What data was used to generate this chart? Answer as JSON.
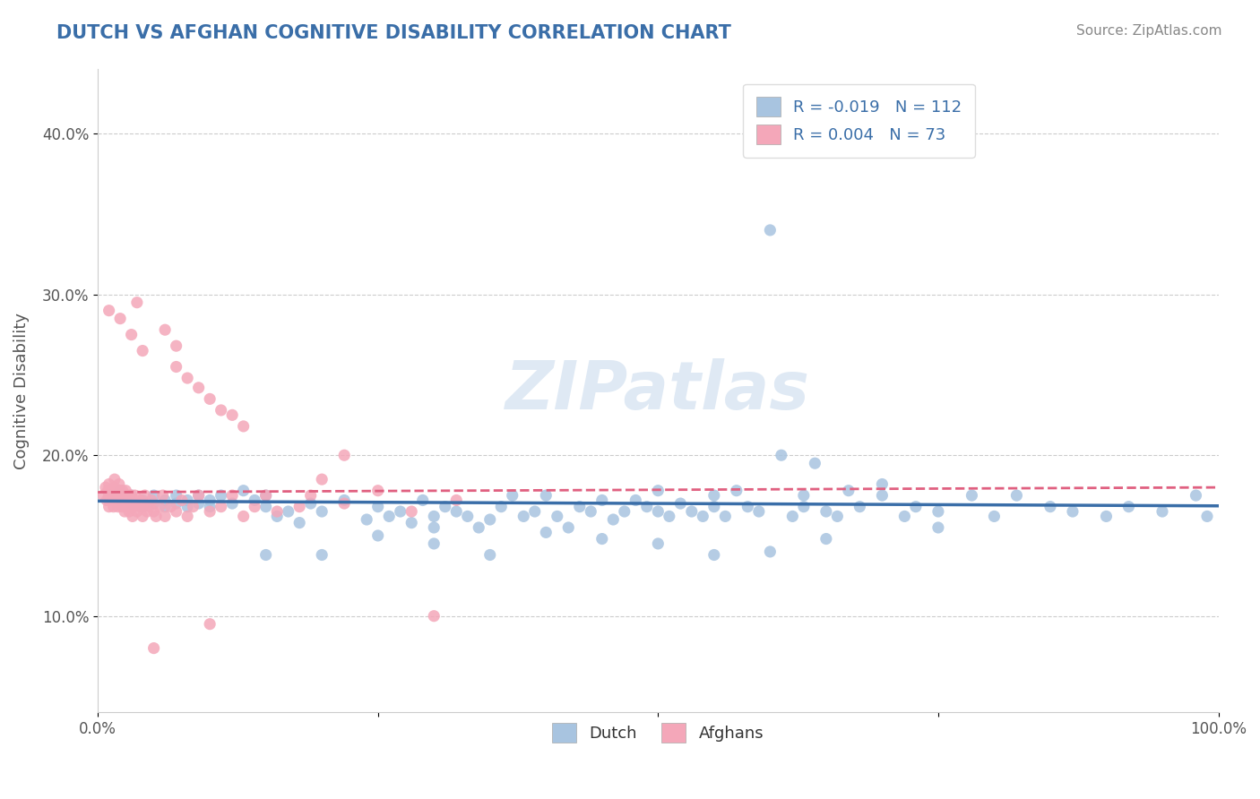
{
  "title": "DUTCH VS AFGHAN COGNITIVE DISABILITY CORRELATION CHART",
  "source": "Source: ZipAtlas.com",
  "ylabel": "Cognitive Disability",
  "xlim": [
    0.0,
    1.0
  ],
  "ylim": [
    0.04,
    0.44
  ],
  "xticks": [
    0.0,
    0.25,
    0.5,
    0.75,
    1.0
  ],
  "xticklabels": [
    "0.0%",
    "",
    "",
    "",
    "100.0%"
  ],
  "yticks": [
    0.1,
    0.2,
    0.3,
    0.4
  ],
  "yticklabels": [
    "10.0%",
    "20.0%",
    "30.0%",
    "40.0%"
  ],
  "dutch_color": "#a8c4e0",
  "afghan_color": "#f4a7b9",
  "dutch_line_color": "#3a6ea8",
  "afghan_line_color": "#e06080",
  "R_dutch": -0.019,
  "N_dutch": 112,
  "R_afghan": 0.004,
  "N_afghan": 73,
  "legend_label_dutch": "Dutch",
  "legend_label_afghan": "Afghans",
  "watermark": "ZIPatlas",
  "title_color": "#3a6ea8",
  "source_color": "#888888",
  "grid_color": "#cccccc",
  "dutch_points_x": [
    0.01,
    0.02,
    0.02,
    0.03,
    0.03,
    0.04,
    0.04,
    0.05,
    0.05,
    0.06,
    0.06,
    0.07,
    0.07,
    0.08,
    0.08,
    0.09,
    0.09,
    0.1,
    0.1,
    0.11,
    0.12,
    0.13,
    0.14,
    0.15,
    0.15,
    0.16,
    0.17,
    0.18,
    0.19,
    0.2,
    0.22,
    0.24,
    0.25,
    0.26,
    0.27,
    0.28,
    0.29,
    0.3,
    0.3,
    0.31,
    0.32,
    0.33,
    0.34,
    0.35,
    0.36,
    0.37,
    0.38,
    0.39,
    0.4,
    0.41,
    0.42,
    0.43,
    0.44,
    0.45,
    0.46,
    0.47,
    0.48,
    0.49,
    0.5,
    0.5,
    0.51,
    0.52,
    0.53,
    0.54,
    0.55,
    0.55,
    0.56,
    0.57,
    0.58,
    0.59,
    0.6,
    0.61,
    0.62,
    0.63,
    0.63,
    0.64,
    0.65,
    0.66,
    0.67,
    0.68,
    0.7,
    0.72,
    0.73,
    0.75,
    0.78,
    0.8,
    0.82,
    0.85,
    0.87,
    0.9,
    0.92,
    0.95,
    0.98,
    0.99,
    0.6,
    0.65,
    0.7,
    0.75,
    0.55,
    0.5,
    0.45,
    0.4,
    0.35,
    0.3,
    0.25,
    0.2,
    0.15
  ],
  "dutch_points_y": [
    0.175,
    0.172,
    0.178,
    0.17,
    0.175,
    0.168,
    0.172,
    0.17,
    0.175,
    0.168,
    0.172,
    0.175,
    0.17,
    0.172,
    0.168,
    0.17,
    0.175,
    0.168,
    0.172,
    0.175,
    0.17,
    0.178,
    0.172,
    0.168,
    0.175,
    0.162,
    0.165,
    0.158,
    0.17,
    0.165,
    0.172,
    0.16,
    0.168,
    0.162,
    0.165,
    0.158,
    0.172,
    0.162,
    0.155,
    0.168,
    0.165,
    0.162,
    0.155,
    0.16,
    0.168,
    0.175,
    0.162,
    0.165,
    0.175,
    0.162,
    0.155,
    0.168,
    0.165,
    0.172,
    0.16,
    0.165,
    0.172,
    0.168,
    0.178,
    0.165,
    0.162,
    0.17,
    0.165,
    0.162,
    0.175,
    0.168,
    0.162,
    0.178,
    0.168,
    0.165,
    0.34,
    0.2,
    0.162,
    0.175,
    0.168,
    0.195,
    0.165,
    0.162,
    0.178,
    0.168,
    0.175,
    0.162,
    0.168,
    0.165,
    0.175,
    0.162,
    0.175,
    0.168,
    0.165,
    0.162,
    0.168,
    0.165,
    0.175,
    0.162,
    0.14,
    0.148,
    0.182,
    0.155,
    0.138,
    0.145,
    0.148,
    0.152,
    0.138,
    0.145,
    0.15,
    0.138,
    0.138
  ],
  "afghan_points_x": [
    0.005,
    0.007,
    0.008,
    0.009,
    0.01,
    0.01,
    0.01,
    0.012,
    0.013,
    0.014,
    0.015,
    0.015,
    0.015,
    0.016,
    0.017,
    0.018,
    0.018,
    0.019,
    0.02,
    0.02,
    0.021,
    0.022,
    0.022,
    0.023,
    0.024,
    0.025,
    0.025,
    0.026,
    0.027,
    0.028,
    0.029,
    0.03,
    0.03,
    0.031,
    0.032,
    0.033,
    0.035,
    0.036,
    0.037,
    0.038,
    0.04,
    0.04,
    0.042,
    0.044,
    0.046,
    0.048,
    0.05,
    0.052,
    0.055,
    0.058,
    0.06,
    0.065,
    0.07,
    0.075,
    0.08,
    0.085,
    0.09,
    0.1,
    0.11,
    0.12,
    0.13,
    0.14,
    0.15,
    0.16,
    0.18,
    0.19,
    0.2,
    0.22,
    0.25,
    0.28,
    0.32,
    0.1,
    0.05
  ],
  "afghan_points_y": [
    0.175,
    0.18,
    0.172,
    0.178,
    0.168,
    0.175,
    0.182,
    0.172,
    0.178,
    0.168,
    0.175,
    0.18,
    0.185,
    0.172,
    0.178,
    0.168,
    0.175,
    0.182,
    0.17,
    0.178,
    0.172,
    0.168,
    0.178,
    0.175,
    0.165,
    0.172,
    0.178,
    0.168,
    0.175,
    0.165,
    0.17,
    0.168,
    0.175,
    0.162,
    0.168,
    0.175,
    0.165,
    0.17,
    0.168,
    0.172,
    0.162,
    0.168,
    0.175,
    0.165,
    0.168,
    0.172,
    0.165,
    0.162,
    0.168,
    0.175,
    0.162,
    0.168,
    0.165,
    0.172,
    0.162,
    0.168,
    0.175,
    0.165,
    0.168,
    0.175,
    0.162,
    0.168,
    0.175,
    0.165,
    0.168,
    0.175,
    0.185,
    0.17,
    0.178,
    0.165,
    0.172,
    0.095,
    0.08
  ],
  "afghan_outliers_x": [
    0.01,
    0.02,
    0.03,
    0.035,
    0.04,
    0.06,
    0.07,
    0.07,
    0.08,
    0.09,
    0.1,
    0.11,
    0.12,
    0.13,
    0.22,
    0.3
  ],
  "afghan_outliers_y": [
    0.29,
    0.285,
    0.275,
    0.295,
    0.265,
    0.278,
    0.255,
    0.268,
    0.248,
    0.242,
    0.235,
    0.228,
    0.225,
    0.218,
    0.2,
    0.1
  ]
}
